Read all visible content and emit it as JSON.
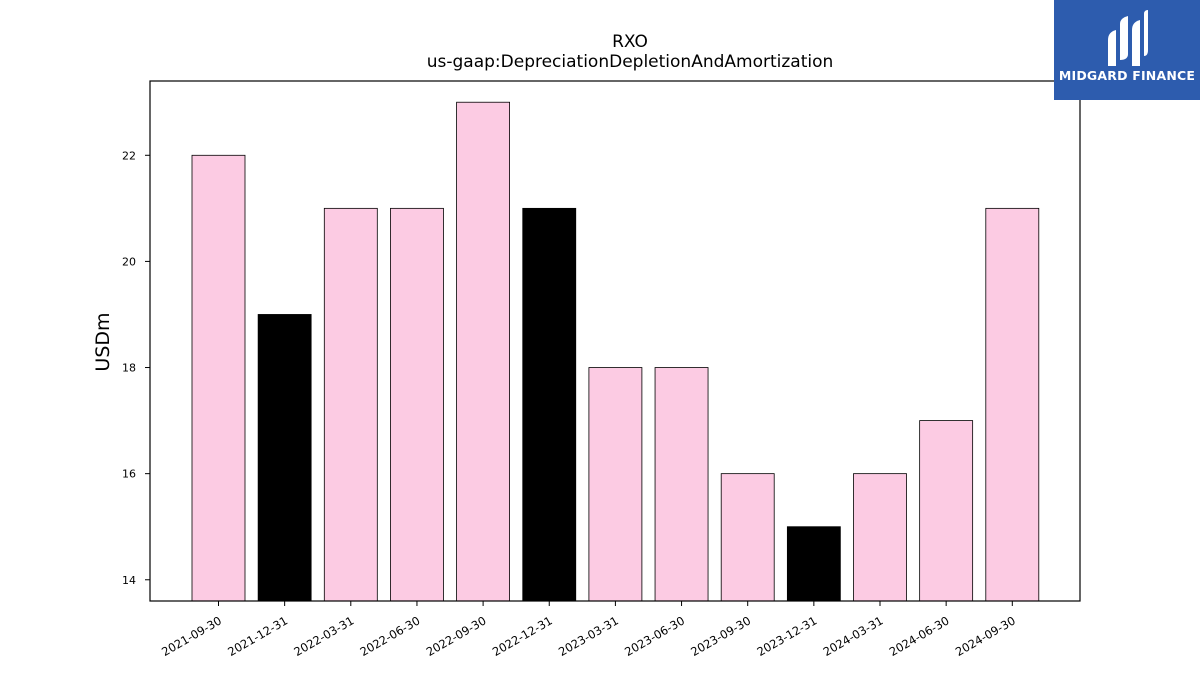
{
  "chart_data": {
    "type": "bar",
    "title": "RXO",
    "subtitle": "us-gaap:DepreciationDepletionAndAmortization",
    "xlabel": "",
    "ylabel": "USDm",
    "categories": [
      "2021-09-30",
      "2021-12-31",
      "2022-03-31",
      "2022-06-30",
      "2022-09-30",
      "2022-12-31",
      "2023-03-31",
      "2023-06-30",
      "2023-09-30",
      "2023-12-31",
      "2024-03-31",
      "2024-06-30",
      "2024-09-30"
    ],
    "values": [
      22,
      19,
      21,
      21,
      23,
      21,
      18,
      18,
      16,
      15,
      16,
      17,
      21
    ],
    "bar_colors": [
      "#fccbe3",
      "#000000",
      "#fccbe3",
      "#fccbe3",
      "#fccbe3",
      "#000000",
      "#fccbe3",
      "#fccbe3",
      "#fccbe3",
      "#000000",
      "#fccbe3",
      "#fccbe3",
      "#fccbe3"
    ],
    "ylim": [
      13.6,
      23.4
    ],
    "yticks": [
      14,
      16,
      18,
      20,
      22
    ],
    "grid": false,
    "legend": "none"
  },
  "logo": {
    "text": "MIDGARD FINANCE",
    "background": "#2d5cae"
  }
}
